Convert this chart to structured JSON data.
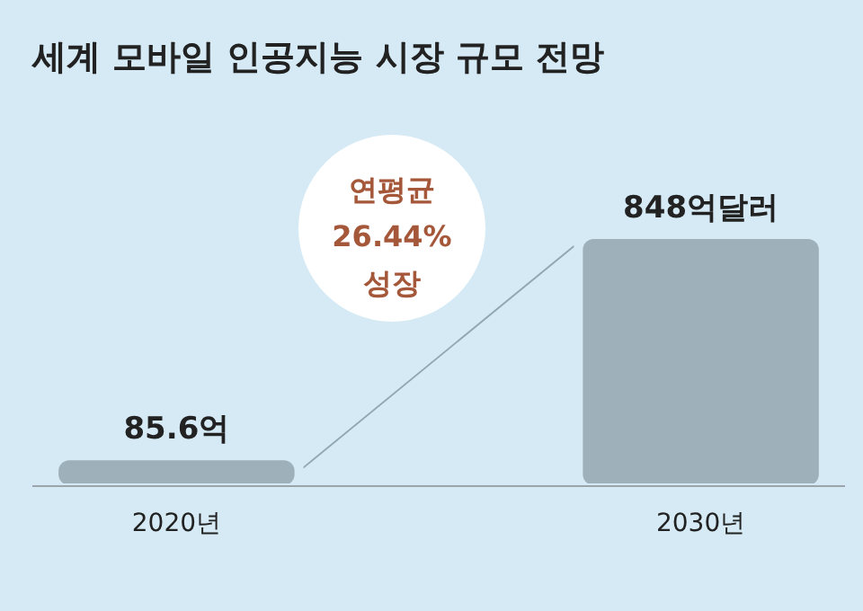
{
  "chart_data": {
    "type": "bar",
    "title": "세계 모바일 인공지능 시장 규모 전망",
    "categories": [
      "2020년",
      "2030년"
    ],
    "values": [
      85.6,
      848
    ],
    "value_labels": [
      "85.6억",
      "848억달러"
    ],
    "color": "#9eb0b9",
    "annotations": [
      "연평균\n26.44%\n성장"
    ]
  }
}
